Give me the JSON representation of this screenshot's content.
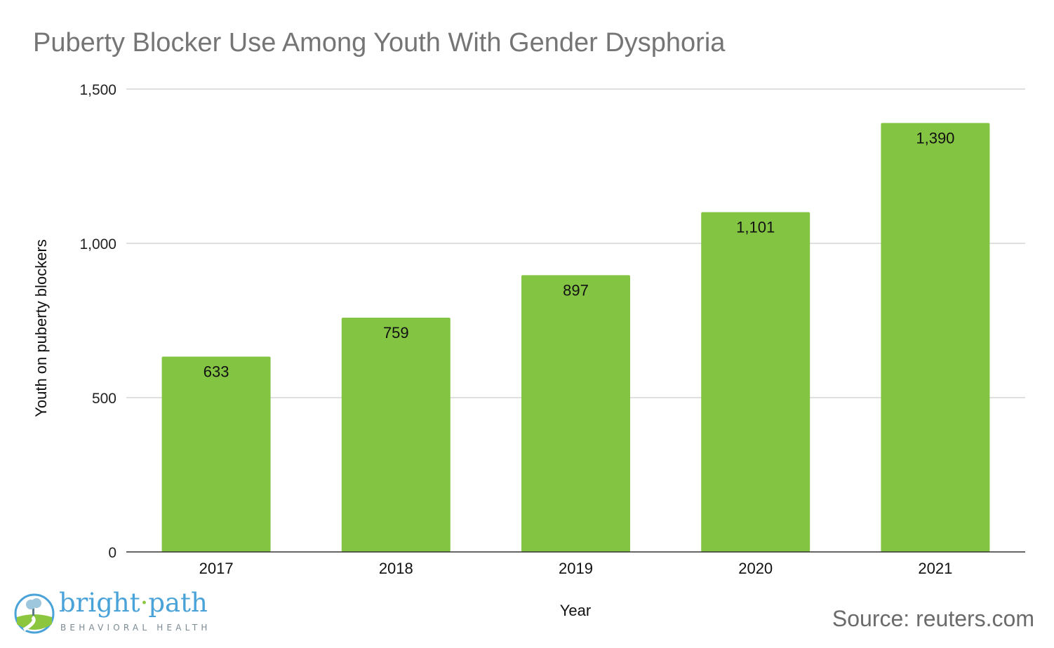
{
  "chart_data": {
    "type": "bar",
    "title": "Puberty Blocker Use Among Youth With Gender Dysphoria",
    "xlabel": "Year",
    "ylabel": "Youth on puberty blockers",
    "categories": [
      "2017",
      "2018",
      "2019",
      "2020",
      "2021"
    ],
    "values": [
      633,
      759,
      897,
      1101,
      1390
    ],
    "data_labels": [
      "633",
      "759",
      "897",
      "1,101",
      "1,390"
    ],
    "ylim": [
      0,
      1500
    ],
    "yticks": [
      0,
      500,
      1000,
      1500
    ],
    "ytick_labels": [
      "0",
      "500",
      "1,000",
      "1,500"
    ],
    "grid": true,
    "bar_color": "#83c443"
  },
  "source_text": "Source: reuters.com",
  "logo": {
    "name_part1": "bright",
    "separator": "·",
    "name_part2": "path",
    "tagline": "BEHAVIORAL HEALTH",
    "brand_color": "#4aa3d8",
    "accent_color": "#8cc63f"
  }
}
